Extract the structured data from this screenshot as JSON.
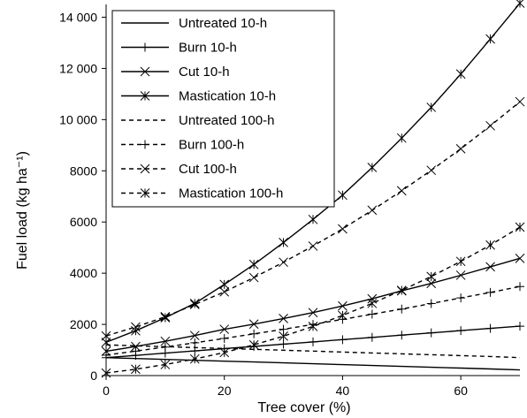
{
  "chart_data": {
    "type": "line",
    "xlabel": "Tree cover (%)",
    "ylabel": "Fuel load (kg ha⁻¹)",
    "xlim": [
      0,
      70
    ],
    "ylim": [
      0,
      14500
    ],
    "x_ticks": [
      0,
      20,
      40,
      60
    ],
    "y_ticks": [
      0,
      2000,
      4000,
      6000,
      8000,
      10000,
      12000,
      14000
    ],
    "y_tick_labels": [
      "0",
      "2000",
      "4000",
      "6000",
      "8000",
      "10 000",
      "12 000",
      "14 000"
    ],
    "x": [
      0,
      5,
      10,
      15,
      20,
      25,
      30,
      35,
      40,
      45,
      50,
      55,
      60,
      65,
      70
    ],
    "grid": false,
    "legend_position": "top-left",
    "series": [
      {
        "name": "Untreated 10-h",
        "line": "solid",
        "marker": "none",
        "values": [
          700,
          666,
          632,
          598,
          564,
          530,
          496,
          462,
          428,
          394,
          360,
          326,
          292,
          258,
          220
        ]
      },
      {
        "name": "Burn 10-h",
        "line": "solid",
        "marker": "plus",
        "values": [
          700,
          788,
          876,
          964,
          1052,
          1140,
          1228,
          1316,
          1404,
          1492,
          1580,
          1668,
          1756,
          1844,
          1930
        ]
      },
      {
        "name": "Cut 10-h",
        "line": "solid",
        "marker": "x",
        "values": [
          950,
          1135,
          1340,
          1565,
          1810,
          2010,
          2230,
          2460,
          2720,
          3000,
          3310,
          3600,
          3920,
          4250,
          4580
        ]
      },
      {
        "name": "Mastication 10-h",
        "line": "solid",
        "marker": "asterisk",
        "values": [
          1300,
          1750,
          2260,
          2820,
          3560,
          4340,
          5200,
          6100,
          7050,
          8130,
          9280,
          10480,
          11780,
          13150,
          14550
        ]
      },
      {
        "name": "Untreated 100-h",
        "line": "dashed",
        "marker": "none",
        "values": [
          1200,
          1165,
          1130,
          1095,
          1060,
          1025,
          990,
          955,
          920,
          885,
          850,
          815,
          780,
          745,
          700
        ]
      },
      {
        "name": "Burn 100-h",
        "line": "dashed",
        "marker": "plus",
        "values": [
          800,
          955,
          1115,
          1280,
          1450,
          1630,
          1810,
          2000,
          2195,
          2400,
          2600,
          2815,
          3035,
          3250,
          3480
        ]
      },
      {
        "name": "Cut 100-h",
        "line": "dashed",
        "marker": "x",
        "values": [
          1550,
          1900,
          2300,
          2780,
          3270,
          3830,
          4430,
          5060,
          5730,
          6460,
          7220,
          8020,
          8860,
          9760,
          10700
        ]
      },
      {
        "name": "Mastication 100-h",
        "line": "dashed",
        "marker": "asterisk",
        "values": [
          100,
          250,
          430,
          650,
          900,
          1200,
          1540,
          1920,
          2350,
          2820,
          3330,
          3870,
          4460,
          5100,
          5800
        ]
      }
    ]
  }
}
